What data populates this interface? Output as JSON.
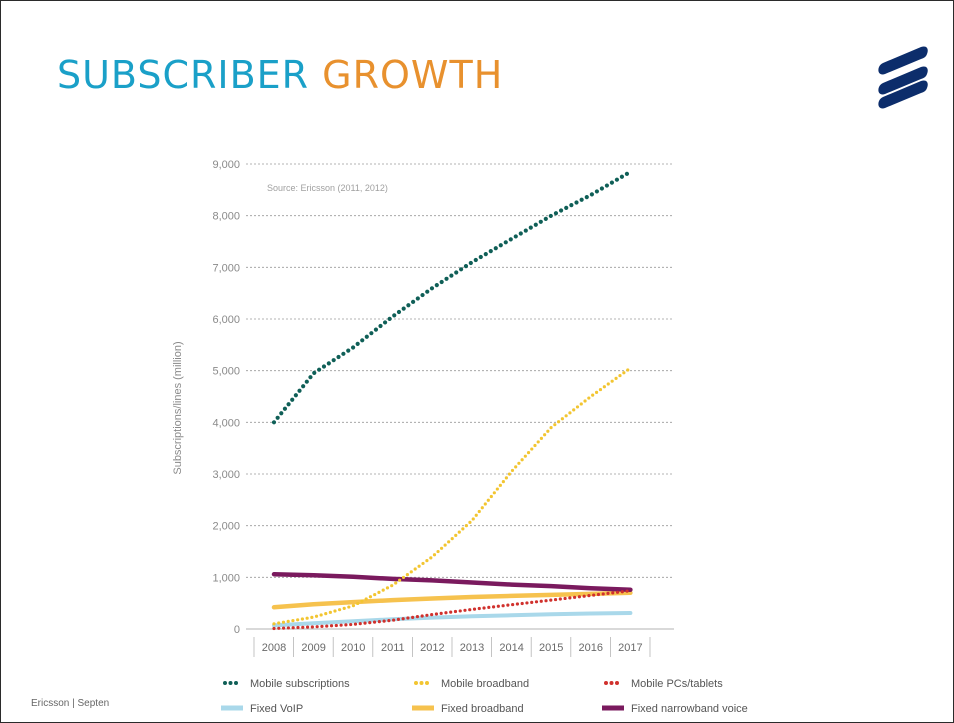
{
  "slide": {
    "title_part1": "SUBSCRIBER ",
    "title_part2": "GROWTH",
    "footer": "Ericsson  |  Septen",
    "logo_icon": "ericsson-logo-icon",
    "colors": {
      "title_blue": "#1aa0c8",
      "title_orange": "#e8912e",
      "logo": "#0c2d6b"
    }
  },
  "chart_data": {
    "type": "line",
    "title": "",
    "annotation": "Source: Ericsson (2011, 2012)",
    "xlabel": "",
    "ylabel": "Subscriptions/lines (million)",
    "ylim": [
      0,
      9000
    ],
    "yticks": [
      0,
      1000,
      2000,
      3000,
      4000,
      5000,
      6000,
      7000,
      8000,
      9000
    ],
    "ytick_labels": [
      "0",
      "1,000",
      "2,000",
      "3,000",
      "4,000",
      "5,000",
      "6,000",
      "7,000",
      "8,000",
      "9,000"
    ],
    "categories": [
      "2008",
      "2009",
      "2010",
      "2011",
      "2012",
      "2013",
      "2014",
      "2015",
      "2016",
      "2017"
    ],
    "grid": "horizontal dashed",
    "legend_position": "bottom",
    "series": [
      {
        "name": "Mobile subscriptions",
        "style": "dotted",
        "color": "#0f5f57",
        "values": [
          4000,
          4950,
          5450,
          6050,
          6600,
          7100,
          7550,
          8000,
          8400,
          8850
        ]
      },
      {
        "name": "Mobile broadband",
        "style": "dotted",
        "color": "#f2c531",
        "values": [
          100,
          230,
          450,
          850,
          1400,
          2100,
          3050,
          3900,
          4500,
          5050
        ]
      },
      {
        "name": "Mobile PCs/tablets",
        "style": "dotted",
        "color": "#d0312d",
        "values": [
          10,
          40,
          90,
          170,
          280,
          380,
          470,
          560,
          650,
          740
        ]
      },
      {
        "name": "Fixed VoIP",
        "style": "solid",
        "color": "#a9d8ea",
        "values": [
          70,
          110,
          150,
          190,
          220,
          245,
          265,
          285,
          300,
          310
        ]
      },
      {
        "name": "Fixed broadband",
        "style": "solid",
        "color": "#f6c24e",
        "values": [
          420,
          480,
          520,
          560,
          590,
          620,
          640,
          660,
          680,
          700
        ]
      },
      {
        "name": "Fixed narrowband voice",
        "style": "solid",
        "color": "#7a1a5e",
        "values": [
          1060,
          1040,
          1010,
          970,
          940,
          900,
          860,
          830,
          790,
          760
        ]
      }
    ]
  }
}
